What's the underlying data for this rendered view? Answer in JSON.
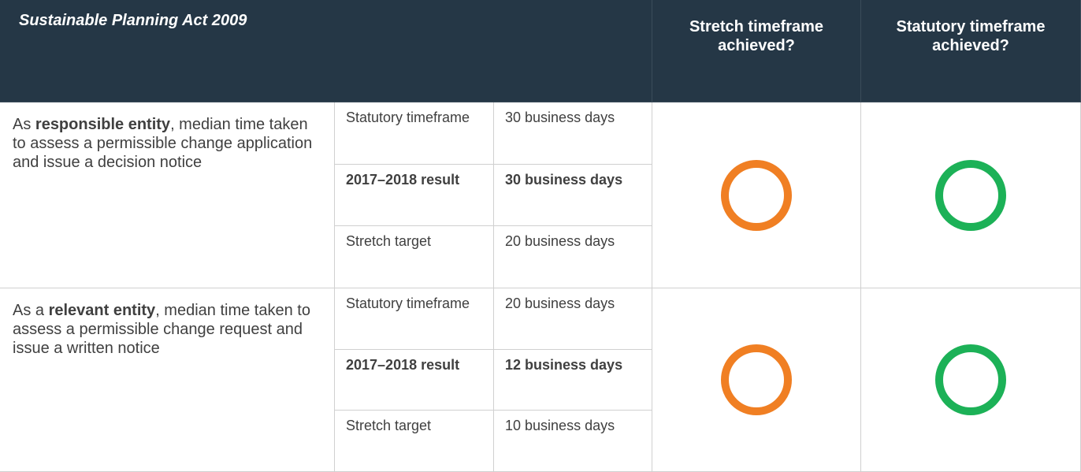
{
  "header": {
    "title": "Sustainable Planning Act 2009",
    "columns": [
      "Stretch timeframe achieved?",
      "Statutory timeframe achieved?"
    ]
  },
  "rows": [
    {
      "description": [
        {
          "text": "As "
        },
        {
          "text": "responsible entity",
          "bold": true
        },
        {
          "text": ", median time taken to assess a permissible change application and issue a decision notice"
        }
      ],
      "measures": [
        {
          "label": "Statutory timeframe",
          "value": "30 business days",
          "bold": false
        },
        {
          "label": "2017–2018 result",
          "value": "30 business days",
          "bold": true
        },
        {
          "label": "Stretch target",
          "value": "20 business days",
          "bold": false
        }
      ],
      "stretch_color": "#f07f23",
      "statutory_color": "#1cb157"
    },
    {
      "description": [
        {
          "text": "As a "
        },
        {
          "text": "relevant entity",
          "bold": true
        },
        {
          "text": ", median time taken to assess a permissible change request and issue a written notice"
        }
      ],
      "measures": [
        {
          "label": "Statutory timeframe",
          "value": "20 business days",
          "bold": false
        },
        {
          "label": "2017–2018 result",
          "value": "12 business days",
          "bold": true
        },
        {
          "label": "Stretch target",
          "value": "10 business days",
          "bold": false
        }
      ],
      "stretch_color": "#f07f23",
      "statutory_color": "#1cb157"
    }
  ]
}
